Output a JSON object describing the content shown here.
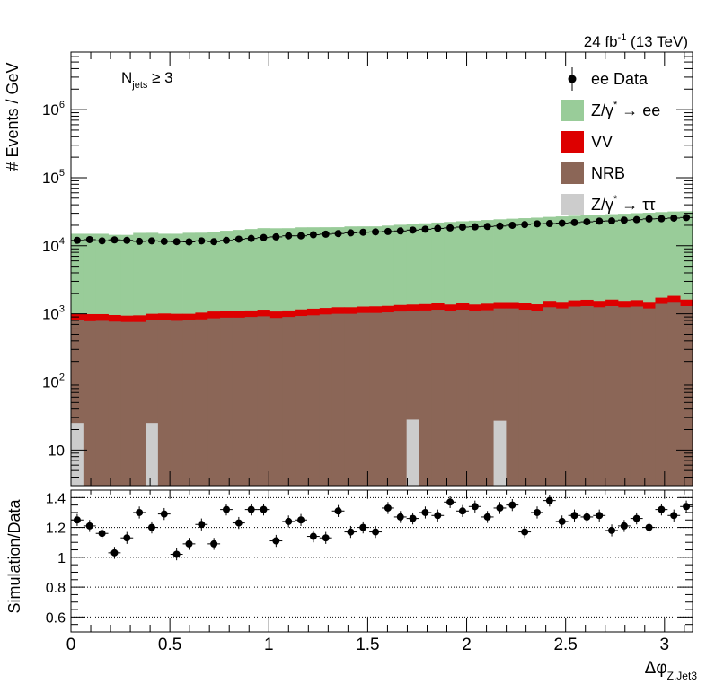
{
  "header": {
    "lumi_main": "24 fb",
    "lumi_exp": "-1",
    "lumi_energy": " (13 TeV)"
  },
  "region": {
    "prefix": "N",
    "sub": "jets",
    "suffix": " ≥ 3"
  },
  "colors": {
    "zee": "#99cc99",
    "vv": "#dd0000",
    "nrb": "#8b6657",
    "ztautau": "#cccccc",
    "data": "#000000"
  },
  "chart_data": [
    {
      "type": "bar",
      "stacked": true,
      "log_y": true,
      "ylim": [
        3,
        7000000
      ],
      "xlim": [
        0,
        3.1416
      ],
      "n_bins": 50,
      "ylabel": "# Events / GeV",
      "y_ticks": [
        10,
        100,
        1000,
        10000,
        100000,
        1000000
      ],
      "y_tick_labels": [
        {
          "base": "10",
          "exp": ""
        },
        {
          "base": "10",
          "exp": "2"
        },
        {
          "base": "10",
          "exp": "3"
        },
        {
          "base": "10",
          "exp": "4"
        },
        {
          "base": "10",
          "exp": "5"
        },
        {
          "base": "10",
          "exp": "6"
        }
      ],
      "legend_position": "top-right",
      "legend": [
        {
          "key": "data",
          "label_main": "ee Data",
          "label_sup": "",
          "label_tail": ""
        },
        {
          "key": "zee",
          "label_main": "Z/γ",
          "label_sup": "*",
          "label_tail": " → ee"
        },
        {
          "key": "vv",
          "label_main": "VV",
          "label_sup": "",
          "label_tail": ""
        },
        {
          "key": "nrb",
          "label_main": "NRB",
          "label_sup": "",
          "label_tail": ""
        },
        {
          "key": "ztautau",
          "label_main": "Z/γ",
          "label_sup": "*",
          "label_tail": " → ττ"
        }
      ],
      "series": [
        {
          "key": "nrb",
          "values": [
            800,
            780,
            790,
            770,
            760,
            760,
            800,
            810,
            790,
            800,
            830,
            860,
            880,
            880,
            900,
            920,
            870,
            900,
            930,
            950,
            980,
            1000,
            1000,
            1030,
            1030,
            1050,
            1080,
            1100,
            1120,
            1150,
            1100,
            1150,
            1100,
            1130,
            1200,
            1200,
            1150,
            1100,
            1250,
            1200,
            1280,
            1300,
            1250,
            1300,
            1250,
            1280,
            1200,
            1400,
            1500,
            1300
          ]
        },
        {
          "key": "vv",
          "values": [
            200,
            210,
            200,
            190,
            180,
            190,
            200,
            200,
            210,
            200,
            210,
            220,
            230,
            220,
            220,
            230,
            210,
            220,
            230,
            240,
            240,
            250,
            250,
            250,
            260,
            260,
            270,
            270,
            270,
            280,
            270,
            280,
            270,
            280,
            290,
            290,
            280,
            280,
            300,
            300,
            300,
            310,
            300,
            320,
            300,
            310,
            300,
            330,
            340,
            320
          ]
        },
        {
          "key": "zee",
          "values": [
            14000,
            14000,
            14000,
            13500,
            13500,
            14500,
            14500,
            14000,
            14000,
            14500,
            14500,
            15000,
            15500,
            16000,
            16500,
            17000,
            17000,
            17000,
            17500,
            17500,
            17500,
            17500,
            18000,
            18000,
            18000,
            18500,
            19000,
            19500,
            20000,
            20500,
            21000,
            21500,
            22000,
            22500,
            23000,
            23500,
            24000,
            24500,
            25000,
            25500,
            26000,
            26500,
            27000,
            27500,
            28000,
            28500,
            29000,
            29500,
            30000,
            30500
          ]
        },
        {
          "key": "ztautau",
          "values": [
            25,
            0,
            0,
            0,
            0,
            0,
            25,
            0,
            0,
            0,
            0,
            0,
            0,
            0,
            0,
            0,
            0,
            0,
            0,
            0,
            0,
            0,
            0,
            0,
            0,
            0,
            0,
            28,
            0,
            0,
            0,
            0,
            0,
            0,
            27,
            0,
            0,
            0,
            0,
            0,
            0,
            0,
            0,
            0,
            0,
            0,
            0,
            0,
            0,
            0
          ]
        }
      ],
      "data": {
        "key": "data",
        "values": [
          12000,
          12300,
          11800,
          12200,
          12000,
          11600,
          11800,
          11600,
          11500,
          11400,
          11800,
          11500,
          12000,
          12500,
          12800,
          13200,
          13500,
          14000,
          14000,
          14500,
          14800,
          15100,
          15500,
          15800,
          16000,
          16200,
          16500,
          17000,
          17500,
          18000,
          18300,
          18800,
          19000,
          19200,
          19500,
          20000,
          20500,
          21000,
          21200,
          21500,
          22000,
          22500,
          23000,
          23200,
          23800,
          24200,
          24800,
          25000,
          25500,
          26000
        ]
      }
    },
    {
      "type": "scatter",
      "ylabel": "Simulation/Data",
      "xlabel": "Δφ",
      "xlabel_sub": "Z,Jet3",
      "xlim": [
        0,
        3.1416
      ],
      "ylim": [
        0.5,
        1.45
      ],
      "grid_y": [
        0.6,
        0.8,
        1.0,
        1.2,
        1.4
      ],
      "y_tick_labels": [
        "0.6",
        "0.8",
        "1",
        "1.2",
        "1.4"
      ],
      "x_ticks": [
        0,
        0.5,
        1,
        1.5,
        2,
        2.5,
        3
      ],
      "x_tick_labels": [
        "0",
        "0.5",
        "1",
        "1.5",
        "2",
        "2.5",
        "3"
      ],
      "values": [
        1.25,
        1.21,
        1.16,
        1.03,
        1.13,
        1.3,
        1.2,
        1.29,
        1.02,
        1.09,
        1.22,
        1.09,
        1.32,
        1.23,
        1.32,
        1.32,
        1.11,
        1.24,
        1.25,
        1.14,
        1.13,
        1.31,
        1.17,
        1.2,
        1.17,
        1.33,
        1.27,
        1.26,
        1.3,
        1.28,
        1.37,
        1.31,
        1.34,
        1.27,
        1.33,
        1.35,
        1.17,
        1.3,
        1.38,
        1.24,
        1.28,
        1.27,
        1.28,
        1.18,
        1.21,
        1.26,
        1.2,
        1.32,
        1.28,
        1.34
      ],
      "errors": [
        0.04,
        0.04,
        0.04,
        0.04,
        0.04,
        0.04,
        0.04,
        0.04,
        0.04,
        0.04,
        0.04,
        0.04,
        0.04,
        0.04,
        0.04,
        0.04,
        0.04,
        0.04,
        0.04,
        0.04,
        0.04,
        0.04,
        0.04,
        0.04,
        0.04,
        0.04,
        0.04,
        0.04,
        0.04,
        0.04,
        0.04,
        0.04,
        0.04,
        0.04,
        0.04,
        0.04,
        0.04,
        0.04,
        0.04,
        0.04,
        0.04,
        0.04,
        0.04,
        0.04,
        0.04,
        0.04,
        0.04,
        0.04,
        0.04,
        0.04
      ]
    }
  ]
}
